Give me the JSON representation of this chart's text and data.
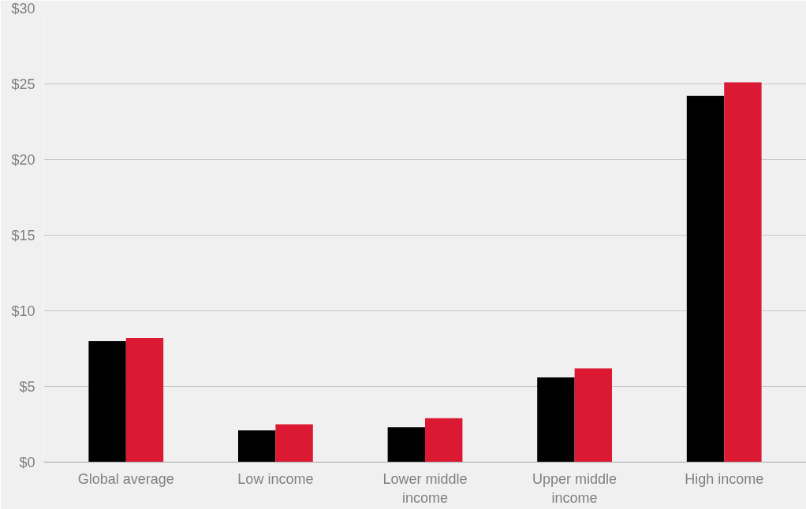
{
  "chart_data": {
    "type": "bar",
    "categories": [
      "Global average",
      "Low income",
      "Lower middle income",
      "Upper middle income",
      "High income"
    ],
    "series": [
      {
        "color": "#000000",
        "values": [
          8.0,
          2.1,
          2.3,
          5.6,
          24.2
        ]
      },
      {
        "color": "#dc1932",
        "values": [
          8.2,
          2.5,
          2.9,
          6.2,
          25.1
        ]
      }
    ],
    "ylim": [
      0,
      30
    ],
    "yticks": [
      {
        "value": 0,
        "label": "$0"
      },
      {
        "value": 5,
        "label": "$5"
      },
      {
        "value": 10,
        "label": "$10"
      },
      {
        "value": 15,
        "label": "$15"
      },
      {
        "value": 20,
        "label": "$20"
      },
      {
        "value": 25,
        "label": "$25"
      },
      {
        "value": 30,
        "label": "$30"
      }
    ],
    "grid": "y"
  }
}
